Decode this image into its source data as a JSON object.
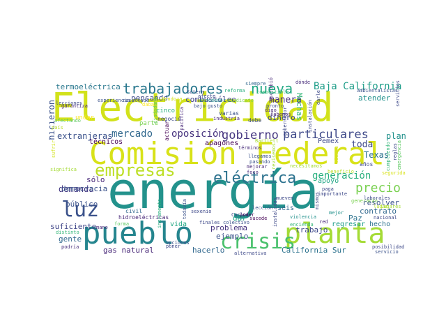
{
  "words": [
    {
      "text": "energía",
      "color": "#23928c"
    },
    {
      "text": "Electricidad",
      "color": "#d2e21b"
    },
    {
      "text": "Comisión Federal",
      "color": "#d8e219"
    },
    {
      "text": "pueblo",
      "color": "#25858e"
    },
    {
      "text": "planta",
      "color": "#a5db36"
    },
    {
      "text": "crisis",
      "color": "#4ac16d"
    },
    {
      "text": "luz",
      "color": "#3b528b"
    },
    {
      "text": "empresas",
      "color": "#bddf26"
    },
    {
      "text": "eléctrica",
      "color": "#2c728e"
    },
    {
      "text": "trabajadores",
      "color": "#2a788e"
    },
    {
      "text": "nueva",
      "color": "#22a884"
    },
    {
      "text": "gobierno",
      "color": "#453781"
    },
    {
      "text": "particulares",
      "color": "#3e4989"
    },
    {
      "text": "precio",
      "color": "#7ad151"
    },
    {
      "text": "generación",
      "color": "#2ab07f"
    },
    {
      "text": "Baja California",
      "color": "#1f9e89"
    },
    {
      "text": "oposición",
      "color": "#46327e"
    },
    {
      "text": "mercado",
      "color": "#31688e"
    },
    {
      "text": "termoeléctrica",
      "color": "#2a788e"
    },
    {
      "text": "extranjeras",
      "color": "#3b528b"
    },
    {
      "text": "combustóleo",
      "color": "#414487"
    },
    {
      "text": "pensando",
      "color": "#3e4989"
    },
    {
      "text": "manera",
      "color": "#472d7b"
    },
    {
      "text": "Muchas",
      "color": "#35b779"
    },
    {
      "text": "atender",
      "color": "#21918c"
    },
    {
      "text": "hicieron",
      "color": "#3b528b"
    },
    {
      "text": "demanda",
      "color": "#443983"
    },
    {
      "text": "democracia",
      "color": "#3b528b"
    },
    {
      "text": "sólo",
      "color": "#482878"
    },
    {
      "text": "técnicos",
      "color": "#440154"
    },
    {
      "text": "apagones",
      "color": "#440154"
    },
    {
      "text": "dinero",
      "color": "#414487"
    },
    {
      "text": "trabajo",
      "color": "#3e4989"
    },
    {
      "text": "Pemex",
      "color": "#3e4989"
    },
    {
      "text": "toda",
      "color": "#3e4989"
    },
    {
      "text": "plan",
      "color": "#21918c"
    },
    {
      "text": "Texas",
      "color": "#2c728e"
    },
    {
      "text": "apoyo",
      "color": "#21a585"
    },
    {
      "text": "público",
      "color": "#3b528b"
    },
    {
      "text": "suficiente",
      "color": "#404688"
    },
    {
      "text": "gente",
      "color": "#31688e"
    },
    {
      "text": "gas natural",
      "color": "#482878"
    },
    {
      "text": "problema",
      "color": "#46327e"
    },
    {
      "text": "ejemplo",
      "color": "#3b528b"
    },
    {
      "text": "hacerlo",
      "color": "#31688e"
    },
    {
      "text": "California Sur",
      "color": "#2c728e"
    },
    {
      "text": "dar",
      "color": "#1fa187"
    },
    {
      "text": "vida",
      "color": "#22a884"
    },
    {
      "text": "contrato",
      "color": "#31688e"
    },
    {
      "text": "resolver",
      "color": "#3b528b"
    },
    {
      "text": "Paz",
      "color": "#2c728e"
    },
    {
      "text": "regresar",
      "color": "#1f9e89"
    },
    {
      "text": "hecho",
      "color": "#2c728e"
    },
    {
      "text": "seis",
      "color": "#31688e"
    },
    {
      "text": "actuar",
      "color": "#440154"
    },
    {
      "text": "cinco",
      "color": "#2ab07f"
    },
    {
      "text": "negocio",
      "color": "#3e4989"
    },
    {
      "text": "industria",
      "color": "#482878"
    },
    {
      "text": "parte",
      "color": "#7ad151"
    },
    {
      "text": "undar",
      "color": "#fde725"
    },
    {
      "text": "hidroeléctricas",
      "color": "#482878"
    },
    {
      "text": "siempre",
      "color": "#31688e"
    },
    {
      "text": "reforma",
      "color": "#2ab07f"
    },
    {
      "text": "combustible",
      "color": "#35b779"
    },
    {
      "text": "ambientalistas",
      "color": "#3b528b"
    },
    {
      "text": "garantiza",
      "color": "#482878"
    },
    {
      "text": "dónde",
      "color": "#472d7b"
    },
    {
      "text": "varias",
      "color": "#3b528b"
    },
    {
      "text": "debe",
      "color": "#3e4989"
    },
    {
      "text": "sabemos",
      "color": "#482878"
    },
    {
      "text": "digo",
      "color": "#482878"
    },
    {
      "text": "pronto",
      "color": "#3e4989"
    },
    {
      "text": "servicios",
      "color": "#3e4989"
    },
    {
      "text": "términos",
      "color": "#472d7b"
    },
    {
      "text": "llegamos",
      "color": "#3b528b"
    },
    {
      "text": "pasando",
      "color": "#3b528b"
    },
    {
      "text": "mejorar",
      "color": "#482878"
    },
    {
      "text": "foco",
      "color": "#482878"
    },
    {
      "text": "Carlos",
      "color": "#3e4989"
    },
    {
      "text": "mueven",
      "color": "#3e4989"
    },
    {
      "text": "lección",
      "color": "#3b528b"
    },
    {
      "text": "poder",
      "color": "#440154"
    },
    {
      "text": "sucede",
      "color": "#440154"
    },
    {
      "text": "finales",
      "color": "#3e4989"
    },
    {
      "text": "colectivo",
      "color": "#3b528b"
    },
    {
      "text": "sexenio",
      "color": "#3e4989"
    },
    {
      "text": "todavía",
      "color": "#3b528b"
    },
    {
      "text": "civil",
      "color": "#31688e"
    },
    {
      "text": "incremento",
      "color": "#2ab07f"
    },
    {
      "text": "forma",
      "color": "#5ec962"
    },
    {
      "text": "mano",
      "color": "#482878"
    },
    {
      "text": "distinto",
      "color": "#35b779"
    },
    {
      "text": "podría",
      "color": "#472d7b"
    },
    {
      "text": "poner",
      "color": "#3e4989"
    },
    {
      "text": "opciones",
      "color": "#3b528b"
    },
    {
      "text": "alternativa",
      "color": "#3e4989"
    },
    {
      "text": "violencia",
      "color": "#21918c"
    },
    {
      "text": "mejor",
      "color": "#21918c"
    },
    {
      "text": "encienda",
      "color": "#35b779"
    },
    {
      "text": "red",
      "color": "#482878"
    },
    {
      "text": "nacional",
      "color": "#3e4989"
    },
    {
      "text": "posibilidad",
      "color": "#3e4989"
    },
    {
      "text": "servicio",
      "color": "#3b528b"
    },
    {
      "text": "laborales",
      "color": "#3e4989"
    },
    {
      "text": "años",
      "color": "#3e4989"
    },
    {
      "text": "reglas",
      "color": "#3e4989"
    },
    {
      "text": "cumpliendo",
      "color": "#35b779"
    },
    {
      "text": "paga",
      "color": "#3e4989"
    },
    {
      "text": "importante",
      "color": "#3e4989"
    },
    {
      "text": "significa",
      "color": "#a5db36"
    },
    {
      "text": "país",
      "color": "#b8de29"
    },
    {
      "text": "afectando",
      "color": "#5ec962"
    },
    {
      "text": "lecciones",
      "color": "#3e4989"
    },
    {
      "text": "experiencia",
      "color": "#3b528b"
    },
    {
      "text": "alrededor",
      "color": "#21918c"
    },
    {
      "text": "sindicato",
      "color": "#7ad151"
    },
    {
      "text": "gusto",
      "color": "#3b528b"
    },
    {
      "text": "bajo",
      "color": "#3b528b"
    },
    {
      "text": "afecte",
      "color": "#3e4989"
    },
    {
      "text": "ciudadano",
      "color": "#5ec962"
    },
    {
      "text": "Suterm",
      "color": "#3b528b"
    },
    {
      "text": "resultado",
      "color": "#3b528b"
    },
    {
      "text": "daba",
      "color": "#fde725"
    },
    {
      "text": "Mendoza",
      "color": "#d2e21b"
    },
    {
      "text": "pacífica",
      "color": "#482878"
    },
    {
      "text": "escribió",
      "color": "#482878"
    },
    {
      "text": "gobernador",
      "color": "#3e4989"
    },
    {
      "text": "instalación",
      "color": "#3e4989"
    },
    {
      "text": "darle",
      "color": "#3e4989"
    },
    {
      "text": "Bartlett",
      "color": "#a5db36"
    },
    {
      "text": "revisemos",
      "color": "#a5db36"
    },
    {
      "text": "necesitamos",
      "color": "#a5db36"
    },
    {
      "text": "emergencia",
      "color": "#5ec962"
    },
    {
      "text": "tiempo",
      "color": "#d2e21b"
    },
    {
      "text": "beneficio",
      "color": "#b8de29"
    },
    {
      "text": "generarán",
      "color": "#7ad151"
    },
    {
      "text": "mismos",
      "color": "#3e4989"
    },
    {
      "text": "instaladas",
      "color": "#3e4989"
    },
    {
      "text": "lugar",
      "color": "#b8de29"
    },
    {
      "text": "lugares",
      "color": "#a5db36"
    },
    {
      "text": "sufrir",
      "color": "#d2e21b"
    },
    {
      "text": "seguridad",
      "color": "#d8e219"
    }
  ]
}
